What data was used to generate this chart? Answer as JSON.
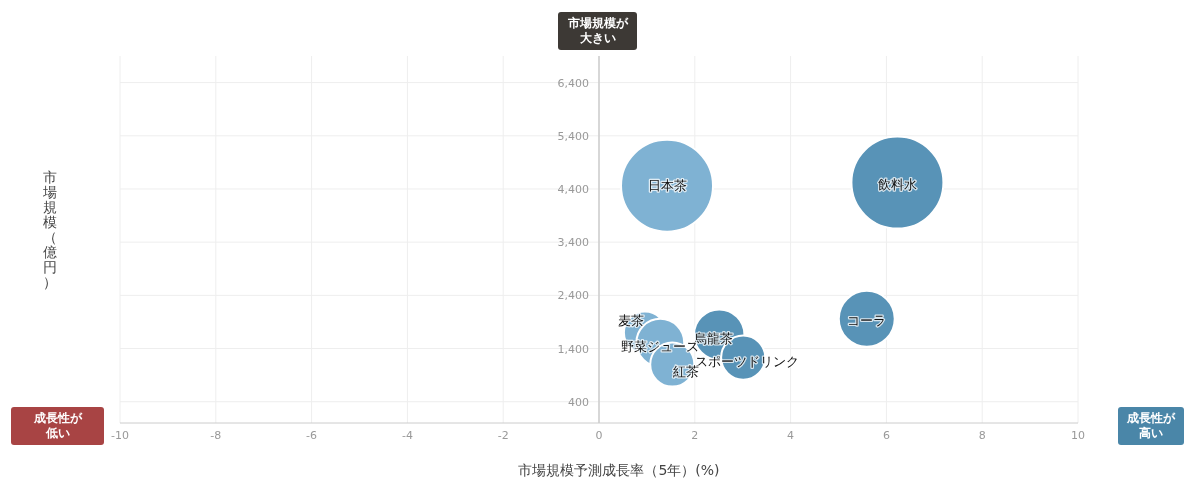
{
  "chart_data": {
    "type": "bubble",
    "xlabel": "市場規模予測成長率（5年）(%)",
    "ylabel": "市場規模（億円）",
    "x": [
      1.42,
      6.23,
      5.59,
      2.51,
      3.01,
      0.96,
      1.28,
      1.53
    ],
    "values": [
      4460,
      4520,
      1960,
      1660,
      1230,
      1700,
      1510,
      1100
    ],
    "sizes": [
      1,
      1,
      0.37,
      0.3,
      0.23,
      0.21,
      0.27,
      0.23
    ],
    "colors": [
      "#7fb2d3",
      "#5893b7",
      "#5893b7",
      "#5893b7",
      "#5893b7",
      "#7fb2d3",
      "#7fb2d3",
      "#7fb2d3"
    ],
    "xlim": [
      -10,
      10
    ],
    "xticks": [
      -10,
      -8,
      -6,
      -4,
      -2,
      0,
      2,
      4,
      6,
      8,
      10
    ],
    "ylim": [
      0,
      6900
    ],
    "yticks": [
      {
        "value": 400,
        "label": "400"
      },
      {
        "value": 1400,
        "label": "1,400"
      },
      {
        "value": 2400,
        "label": "2,400"
      },
      {
        "value": 3400,
        "label": "3,400"
      },
      {
        "value": 4400,
        "label": "4,400"
      },
      {
        "value": 5400,
        "label": "5,400"
      },
      {
        "value": 6400,
        "label": "6,400"
      }
    ],
    "grid": true,
    "legend": false,
    "annotations": [
      "市場規模が大きい",
      "成長性が低い",
      "成長性が高い",
      {
        "text": "日本茶",
        "x": 1.42,
        "y": 4460
      },
      {
        "text": "飲料水",
        "x": 6.23,
        "y": 4520
      },
      {
        "text": "コーラ",
        "x": 5.59,
        "y": 1960
      },
      {
        "text": "烏龍茶",
        "x": 2.51,
        "y": 1660
      },
      {
        "text": "スポーツドリンク",
        "x": 3.01,
        "y": 1230
      },
      {
        "text": "麦茶",
        "x": 0.96,
        "y": 1700
      },
      {
        "text": "野菜ジュース",
        "x": 1.28,
        "y": 1510
      },
      {
        "text": "紅茶",
        "x": 1.53,
        "y": 1100
      }
    ]
  }
}
